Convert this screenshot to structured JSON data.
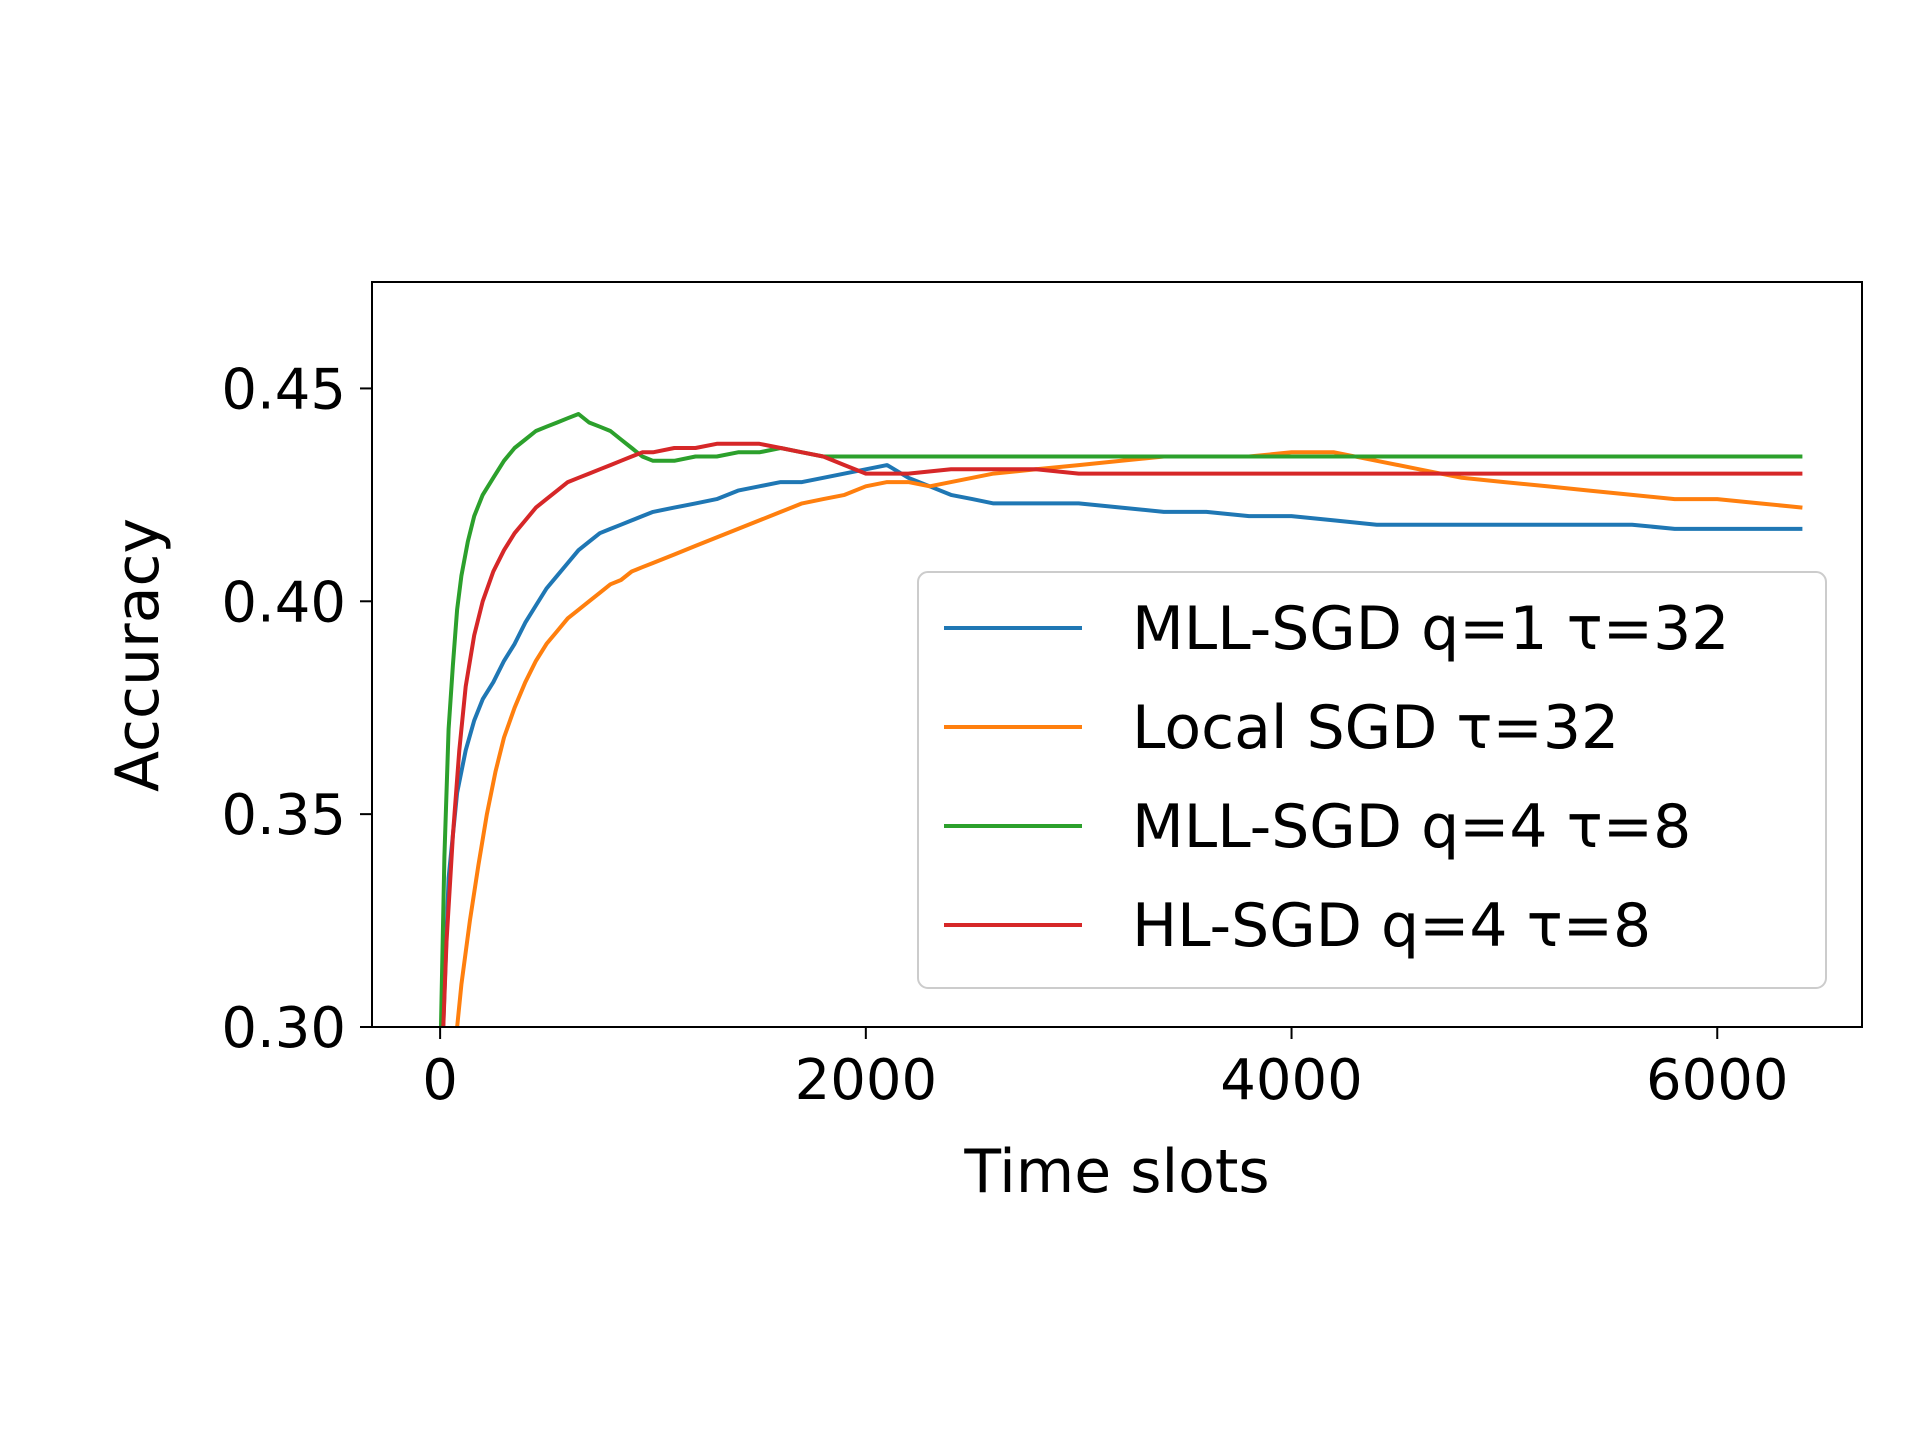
{
  "chart_data": {
    "type": "line",
    "title": "",
    "xlabel": "Time slots",
    "ylabel": "Accuracy",
    "xlim": [
      -320,
      6680
    ],
    "ylim": [
      0.3,
      0.475
    ],
    "xticks": [
      0,
      2000,
      4000,
      6000
    ],
    "xtick_labels": [
      "0",
      "2000",
      "4000",
      "6000"
    ],
    "yticks": [
      0.3,
      0.35,
      0.4,
      0.45
    ],
    "ytick_labels": [
      "0.30",
      "0.35",
      "0.40",
      "0.45"
    ],
    "grid": false,
    "legend_position": "center-right",
    "series": [
      {
        "name": "MLL-SGD q=1 τ=32",
        "color": "#1f77b4",
        "x": [
          0,
          40,
          80,
          120,
          160,
          200,
          250,
          300,
          350,
          400,
          450,
          500,
          550,
          600,
          650,
          700,
          750,
          800,
          850,
          900,
          950,
          1000,
          1100,
          1200,
          1300,
          1400,
          1500,
          1600,
          1700,
          1800,
          1900,
          2000,
          2100,
          2200,
          2300,
          2400,
          2500,
          2600,
          2800,
          3000,
          3200,
          3400,
          3600,
          3800,
          4000,
          4200,
          4400,
          4600,
          4800,
          5000,
          5200,
          5400,
          5600,
          5800,
          6000,
          6200,
          6400
        ],
        "values": [
          0.28,
          0.335,
          0.355,
          0.365,
          0.372,
          0.377,
          0.381,
          0.386,
          0.39,
          0.395,
          0.399,
          0.403,
          0.406,
          0.409,
          0.412,
          0.414,
          0.416,
          0.417,
          0.418,
          0.419,
          0.42,
          0.421,
          0.422,
          0.423,
          0.424,
          0.426,
          0.427,
          0.428,
          0.428,
          0.429,
          0.43,
          0.431,
          0.432,
          0.429,
          0.427,
          0.425,
          0.424,
          0.423,
          0.423,
          0.423,
          0.422,
          0.421,
          0.421,
          0.42,
          0.42,
          0.419,
          0.418,
          0.418,
          0.418,
          0.418,
          0.418,
          0.418,
          0.418,
          0.417,
          0.417,
          0.417,
          0.417
        ]
      },
      {
        "name": "Local SGD τ=32",
        "color": "#ff7f0e",
        "x": [
          0,
          60,
          100,
          140,
          180,
          220,
          260,
          300,
          350,
          400,
          450,
          500,
          550,
          600,
          650,
          700,
          750,
          800,
          850,
          900,
          950,
          1000,
          1100,
          1200,
          1300,
          1400,
          1500,
          1600,
          1700,
          1800,
          1900,
          2000,
          2100,
          2200,
          2300,
          2400,
          2500,
          2600,
          2800,
          3000,
          3200,
          3400,
          3600,
          3800,
          4000,
          4200,
          4400,
          4600,
          4800,
          5000,
          5200,
          5400,
          5600,
          5800,
          6000,
          6200,
          6400
        ],
        "values": [
          0.27,
          0.29,
          0.31,
          0.325,
          0.338,
          0.35,
          0.36,
          0.368,
          0.375,
          0.381,
          0.386,
          0.39,
          0.393,
          0.396,
          0.398,
          0.4,
          0.402,
          0.404,
          0.405,
          0.407,
          0.408,
          0.409,
          0.411,
          0.413,
          0.415,
          0.417,
          0.419,
          0.421,
          0.423,
          0.424,
          0.425,
          0.427,
          0.428,
          0.428,
          0.427,
          0.428,
          0.429,
          0.43,
          0.431,
          0.432,
          0.433,
          0.434,
          0.434,
          0.434,
          0.435,
          0.435,
          0.433,
          0.431,
          0.429,
          0.428,
          0.427,
          0.426,
          0.425,
          0.424,
          0.424,
          0.423,
          0.422
        ]
      },
      {
        "name": "MLL-SGD q=4 τ=8",
        "color": "#2ca02c",
        "x": [
          0,
          20,
          40,
          60,
          80,
          100,
          130,
          160,
          200,
          250,
          300,
          350,
          400,
          450,
          500,
          550,
          600,
          650,
          700,
          750,
          800,
          850,
          900,
          950,
          1000,
          1100,
          1200,
          1300,
          1400,
          1500,
          1600,
          1700,
          1800,
          1900,
          2000,
          2200,
          2400,
          2600,
          2800,
          3000,
          3500,
          4000,
          4500,
          5000,
          5500,
          6000,
          6400
        ],
        "values": [
          0.29,
          0.34,
          0.37,
          0.385,
          0.398,
          0.406,
          0.414,
          0.42,
          0.425,
          0.429,
          0.433,
          0.436,
          0.438,
          0.44,
          0.441,
          0.442,
          0.443,
          0.444,
          0.442,
          0.441,
          0.44,
          0.438,
          0.436,
          0.434,
          0.433,
          0.433,
          0.434,
          0.434,
          0.435,
          0.435,
          0.436,
          0.435,
          0.434,
          0.434,
          0.434,
          0.434,
          0.434,
          0.434,
          0.434,
          0.434,
          0.434,
          0.434,
          0.434,
          0.434,
          0.434,
          0.434,
          0.434
        ]
      },
      {
        "name": "HL-SGD q=4 τ=8",
        "color": "#d62728",
        "x": [
          0,
          30,
          60,
          90,
          120,
          160,
          200,
          250,
          300,
          350,
          400,
          450,
          500,
          550,
          600,
          650,
          700,
          750,
          800,
          850,
          900,
          950,
          1000,
          1100,
          1200,
          1300,
          1400,
          1500,
          1600,
          1700,
          1800,
          1900,
          2000,
          2200,
          2400,
          2600,
          2800,
          3000,
          3200,
          3400,
          3600,
          3800,
          4000,
          4200,
          4400,
          4600,
          4800,
          5000,
          5200,
          5400,
          5600,
          5800,
          6000,
          6200,
          6400
        ],
        "values": [
          0.28,
          0.32,
          0.345,
          0.365,
          0.38,
          0.392,
          0.4,
          0.407,
          0.412,
          0.416,
          0.419,
          0.422,
          0.424,
          0.426,
          0.428,
          0.429,
          0.43,
          0.431,
          0.432,
          0.433,
          0.434,
          0.435,
          0.435,
          0.436,
          0.436,
          0.437,
          0.437,
          0.437,
          0.436,
          0.435,
          0.434,
          0.432,
          0.43,
          0.43,
          0.431,
          0.431,
          0.431,
          0.43,
          0.43,
          0.43,
          0.43,
          0.43,
          0.43,
          0.43,
          0.43,
          0.43,
          0.43,
          0.43,
          0.43,
          0.43,
          0.43,
          0.43,
          0.43,
          0.43,
          0.43
        ]
      }
    ]
  }
}
